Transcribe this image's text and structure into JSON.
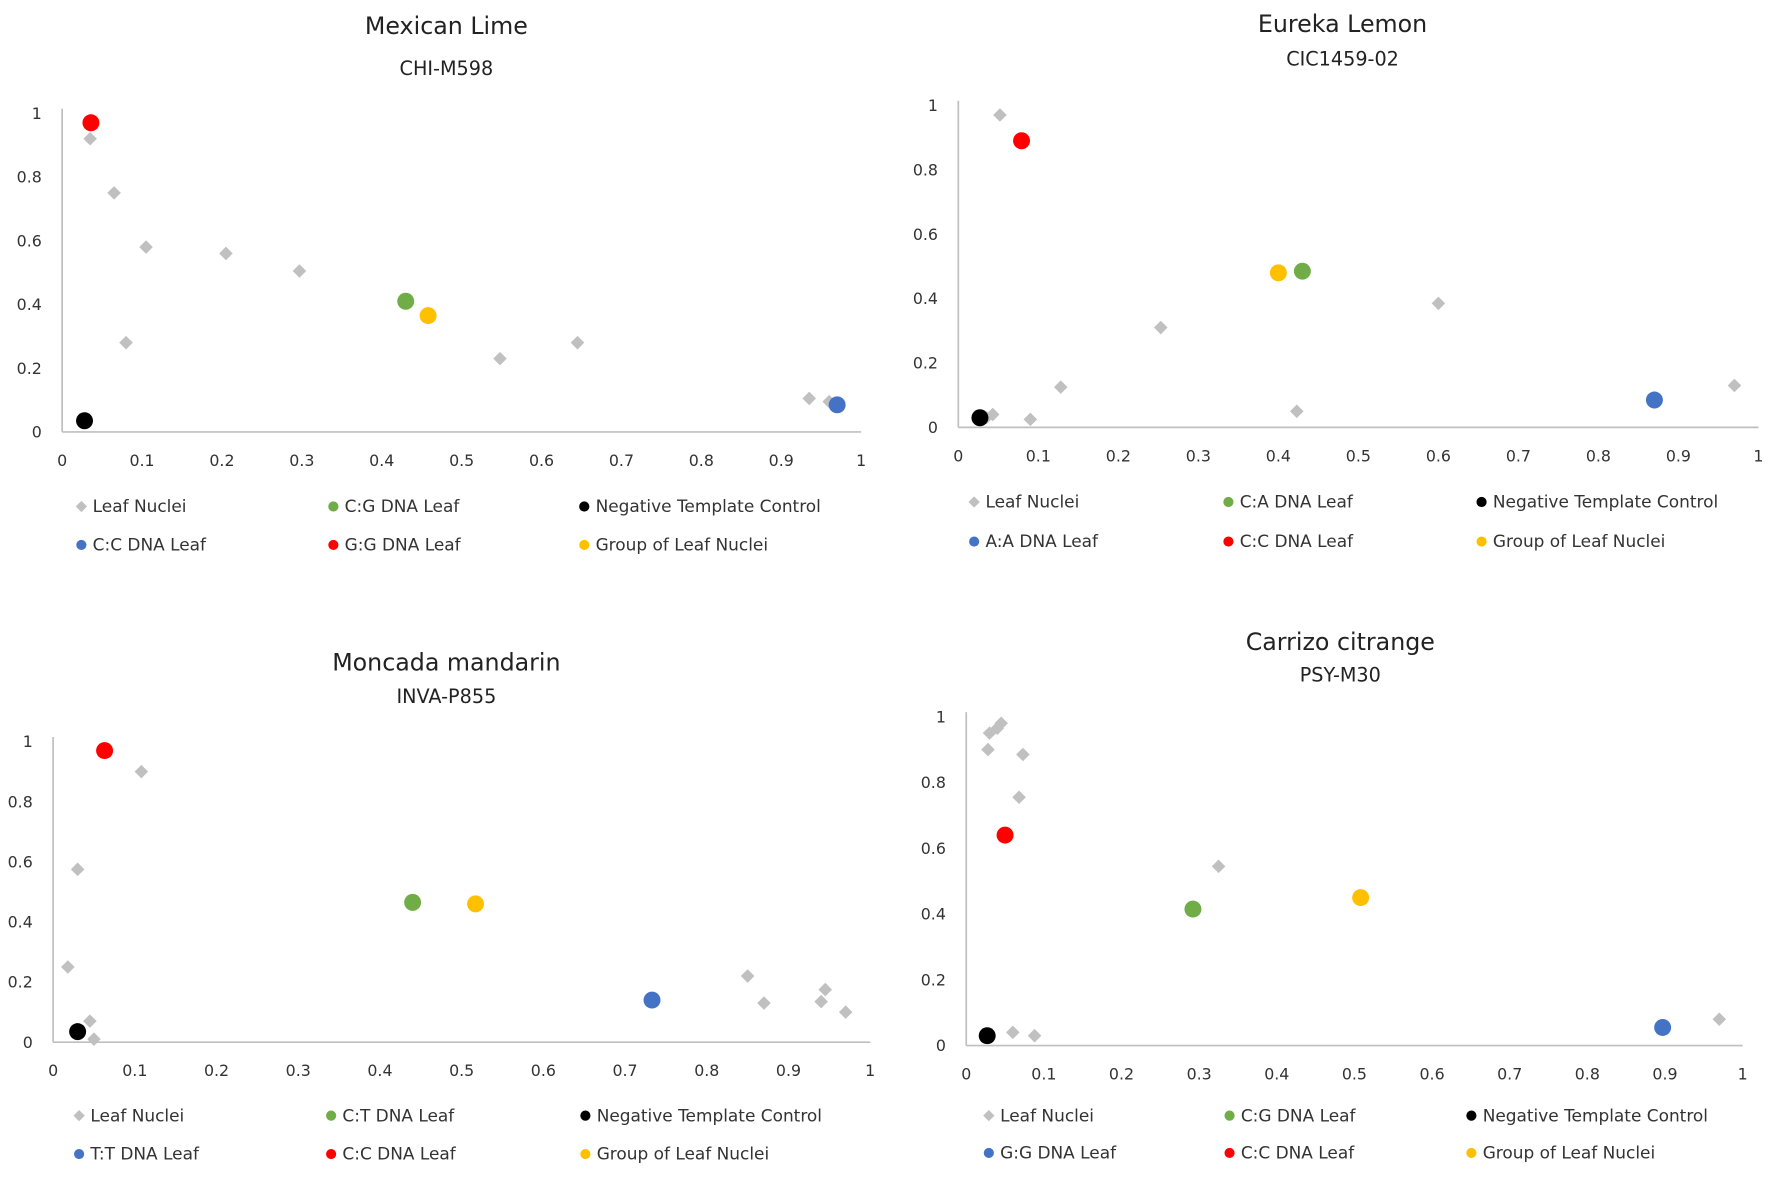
{
  "chart_data": [
    {
      "type": "scatter",
      "title": "Mexican Lime",
      "subtitle": "CHI-M598",
      "xlim": [
        0,
        1
      ],
      "ylim": [
        0,
        1
      ],
      "xticks": [
        "0",
        "0.1",
        "0.2",
        "0.3",
        "0.4",
        "0.5",
        "0.6",
        "0.7",
        "0.8",
        "0.9",
        "1"
      ],
      "yticks": [
        "0",
        "0.2",
        "0.4",
        "0.6",
        "0.8",
        "1"
      ],
      "legend_position": "bottom",
      "series": [
        {
          "name": "Leaf Nuclei",
          "color": "#c0c0c0",
          "marker": "diamond",
          "points": [
            [
              0.035,
              0.92
            ],
            [
              0.065,
              0.75
            ],
            [
              0.105,
              0.58
            ],
            [
              0.08,
              0.28
            ],
            [
              0.205,
              0.56
            ],
            [
              0.297,
              0.505
            ],
            [
              0.548,
              0.23
            ],
            [
              0.645,
              0.28
            ],
            [
              0.935,
              0.105
            ],
            [
              0.96,
              0.095
            ]
          ]
        },
        {
          "name": "C:G DNA Leaf",
          "color": "#70ad47",
          "marker": "circle",
          "points": [
            [
              0.43,
              0.41
            ]
          ]
        },
        {
          "name": "Negative Template Control",
          "color": "#000000",
          "marker": "circle",
          "points": [
            [
              0.028,
              0.035
            ]
          ]
        },
        {
          "name": "C:C DNA Leaf",
          "color": "#4472c4",
          "marker": "circle",
          "points": [
            [
              0.97,
              0.085
            ]
          ]
        },
        {
          "name": "G:G DNA Leaf",
          "color": "#ff0000",
          "marker": "circle",
          "points": [
            [
              0.036,
              0.97
            ]
          ]
        },
        {
          "name": "Group of Leaf Nuclei",
          "color": "#ffc000",
          "marker": "circle",
          "points": [
            [
              0.458,
              0.365
            ]
          ]
        }
      ]
    },
    {
      "type": "scatter",
      "title": "Eureka Lemon",
      "subtitle": "CIC1459-02",
      "xlim": [
        0,
        1
      ],
      "ylim": [
        0,
        1
      ],
      "xticks": [
        "0",
        "0.1",
        "0.2",
        "0.3",
        "0.4",
        "0.5",
        "0.6",
        "0.7",
        "0.8",
        "0.9",
        "1"
      ],
      "yticks": [
        "0",
        "0.2",
        "0.4",
        "0.6",
        "0.8",
        "1"
      ],
      "legend_position": "bottom",
      "series": [
        {
          "name": "Leaf Nuclei",
          "color": "#c0c0c0",
          "marker": "diamond",
          "points": [
            [
              0.052,
              0.97
            ],
            [
              0.043,
              0.04
            ],
            [
              0.035,
              0.03
            ],
            [
              0.09,
              0.025
            ],
            [
              0.128,
              0.125
            ],
            [
              0.253,
              0.31
            ],
            [
              0.6,
              0.385
            ],
            [
              0.423,
              0.05
            ],
            [
              0.97,
              0.13
            ]
          ]
        },
        {
          "name": "C:A DNA Leaf",
          "color": "#70ad47",
          "marker": "circle",
          "points": [
            [
              0.43,
              0.485
            ]
          ]
        },
        {
          "name": "Negative Template Control",
          "color": "#000000",
          "marker": "circle",
          "points": [
            [
              0.027,
              0.03
            ]
          ]
        },
        {
          "name": "A:A DNA Leaf",
          "color": "#4472c4",
          "marker": "circle",
          "points": [
            [
              0.87,
              0.085
            ]
          ]
        },
        {
          "name": "C:C DNA Leaf",
          "color": "#ff0000",
          "marker": "circle",
          "points": [
            [
              0.079,
              0.89
            ]
          ]
        },
        {
          "name": "Group of Leaf Nuclei",
          "color": "#ffc000",
          "marker": "circle",
          "points": [
            [
              0.4,
              0.48
            ]
          ]
        }
      ]
    },
    {
      "type": "scatter",
      "title": "Moncada mandarin",
      "subtitle": "INVA-P855",
      "xlim": [
        0,
        1
      ],
      "ylim": [
        0,
        1
      ],
      "xticks": [
        "0",
        "0.1",
        "0.2",
        "0.3",
        "0.4",
        "0.5",
        "0.6",
        "0.7",
        "0.8",
        "0.9",
        "1"
      ],
      "yticks": [
        "0",
        "0.2",
        "0.4",
        "0.6",
        "0.8",
        "1"
      ],
      "legend_position": "bottom",
      "series": [
        {
          "name": "Leaf Nuclei",
          "color": "#c0c0c0",
          "marker": "diamond",
          "points": [
            [
              0.108,
              0.9
            ],
            [
              0.03,
              0.575
            ],
            [
              0.018,
              0.25
            ],
            [
              0.045,
              0.07
            ],
            [
              0.05,
              0.01
            ],
            [
              0.85,
              0.22
            ],
            [
              0.87,
              0.13
            ],
            [
              0.94,
              0.135
            ],
            [
              0.945,
              0.175
            ],
            [
              0.97,
              0.1
            ]
          ]
        },
        {
          "name": "C:T DNA Leaf",
          "color": "#70ad47",
          "marker": "circle",
          "points": [
            [
              0.44,
              0.465
            ]
          ]
        },
        {
          "name": "Negative Template Control",
          "color": "#000000",
          "marker": "circle",
          "points": [
            [
              0.03,
              0.035
            ]
          ]
        },
        {
          "name": "T:T DNA Leaf",
          "color": "#4472c4",
          "marker": "circle",
          "points": [
            [
              0.733,
              0.14
            ]
          ]
        },
        {
          "name": "C:C DNA Leaf",
          "color": "#ff0000",
          "marker": "circle",
          "points": [
            [
              0.063,
              0.97
            ]
          ]
        },
        {
          "name": "Group of Leaf Nuclei",
          "color": "#ffc000",
          "marker": "circle",
          "points": [
            [
              0.517,
              0.46
            ]
          ]
        }
      ]
    },
    {
      "type": "scatter",
      "title": "Carrizo citrange",
      "subtitle": "PSY-M30",
      "xlim": [
        0,
        1
      ],
      "ylim": [
        0,
        1
      ],
      "xticks": [
        "0",
        "0.1",
        "0.2",
        "0.3",
        "0.4",
        "0.5",
        "0.6",
        "0.7",
        "0.8",
        "0.9",
        "1"
      ],
      "yticks": [
        "0",
        "0.2",
        "0.4",
        "0.6",
        "0.8",
        "1"
      ],
      "legend_position": "bottom",
      "series": [
        {
          "name": "Leaf Nuclei",
          "color": "#c0c0c0",
          "marker": "diamond",
          "points": [
            [
              0.03,
              0.95
            ],
            [
              0.04,
              0.965
            ],
            [
              0.045,
              0.98
            ],
            [
              0.028,
              0.9
            ],
            [
              0.073,
              0.885
            ],
            [
              0.068,
              0.755
            ],
            [
              0.325,
              0.545
            ],
            [
              0.06,
              0.04
            ],
            [
              0.088,
              0.03
            ],
            [
              0.97,
              0.08
            ]
          ]
        },
        {
          "name": "C:G DNA Leaf",
          "color": "#70ad47",
          "marker": "circle",
          "points": [
            [
              0.292,
              0.415
            ]
          ]
        },
        {
          "name": "Negative Template Control",
          "color": "#000000",
          "marker": "circle",
          "points": [
            [
              0.027,
              0.03
            ]
          ]
        },
        {
          "name": "G:G DNA Leaf",
          "color": "#4472c4",
          "marker": "circle",
          "points": [
            [
              0.897,
              0.055
            ]
          ]
        },
        {
          "name": "C:C DNA Leaf",
          "color": "#ff0000",
          "marker": "circle",
          "points": [
            [
              0.05,
              0.64
            ]
          ]
        },
        {
          "name": "Group of Leaf Nuclei",
          "color": "#ffc000",
          "marker": "circle",
          "points": [
            [
              0.508,
              0.45
            ]
          ]
        }
      ]
    }
  ]
}
